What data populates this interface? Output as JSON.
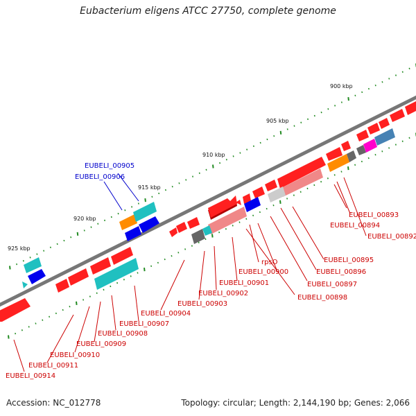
{
  "title": "Eubacterium eligens ATCC 27750, complete genome",
  "footer": {
    "accession": "Accession: NC_012778",
    "summary": "Topology: circular; Length: 2,144,190 bp; Genes: 2,066"
  },
  "scale_labels": [
    "900 kbp",
    "905 kbp",
    "910 kbp",
    "915 kbp",
    "920 kbp",
    "925 kbp"
  ],
  "colors": {
    "backbone": "#777777",
    "gene_red": "#ff0000",
    "gene_light_red": "#f08080",
    "gene_cyan": "#20c0c0",
    "gene_blue": "#0000ee",
    "gene_orange": "#ff8c00",
    "gene_gray": "#666666",
    "gene_magenta": "#ff00cc",
    "gene_steelblue": "#4682b4",
    "scale_tick": "#228b22",
    "label_red": "#cc0000",
    "label_blue": "#0000cc"
  },
  "labels_upper": [
    "EUBELI_00905",
    "EUBELI_00906"
  ],
  "labels_lower": [
    "EUBELI_00893",
    "EUBELI_00894",
    "EUBELI_00892",
    "EUBELI_00895",
    "rpsO",
    "EUBELI_00896",
    "EUBELI_00900",
    "EUBELI_00897",
    "EUBELI_00901",
    "EUBELI_00898",
    "EUBELI_00902",
    "EUBELI_00903",
    "EUBELI_00904",
    "EUBELI_00907",
    "EUBELI_00908",
    "EUBELI_00909",
    "EUBELI_00910",
    "EUBELI_00911",
    "EUBELI_00914"
  ]
}
